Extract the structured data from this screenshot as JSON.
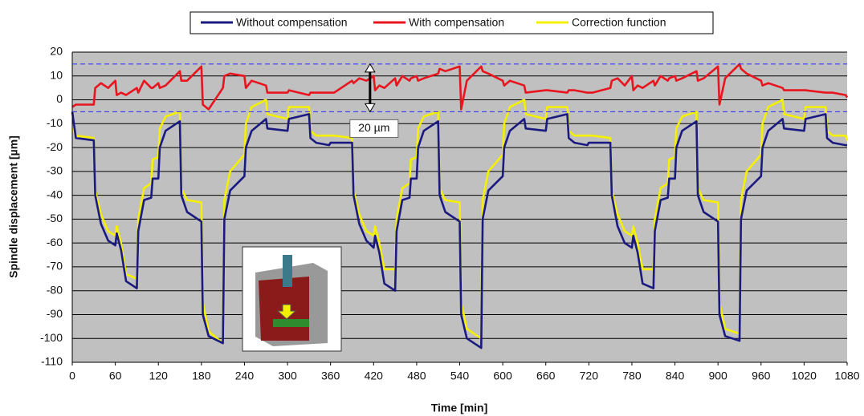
{
  "chart_data": {
    "type": "line",
    "xlabel": "Time [min]",
    "ylabel": "Spindle displacement [µm]",
    "xlim": [
      0,
      1080
    ],
    "ylim": [
      -110,
      20
    ],
    "xticks": [
      0,
      60,
      120,
      180,
      240,
      300,
      360,
      420,
      480,
      540,
      600,
      660,
      720,
      780,
      840,
      900,
      960,
      1020,
      1080
    ],
    "yticks": [
      -110,
      -100,
      -90,
      -80,
      -70,
      -60,
      -50,
      -40,
      -30,
      -20,
      -10,
      0,
      10,
      20
    ],
    "grid": true,
    "legend": "top",
    "annotations": [
      {
        "text": "20 µm",
        "x": 415,
        "y_from": -5,
        "y_to": 15
      }
    ],
    "x": [
      0,
      5,
      30,
      32,
      40,
      50,
      60,
      62,
      68,
      75,
      90,
      92,
      100,
      110,
      112,
      120,
      122,
      130,
      150,
      152,
      160,
      180,
      182,
      190,
      210,
      212,
      220,
      240,
      242,
      250,
      270,
      272,
      300,
      302,
      330,
      332,
      340,
      358,
      360,
      365,
      390,
      392,
      400,
      410,
      420,
      422,
      428,
      435,
      450,
      452,
      460,
      470,
      472,
      480,
      482,
      490,
      510,
      512,
      520,
      540,
      542,
      550,
      570,
      572,
      580,
      600,
      602,
      610,
      630,
      632,
      660,
      662,
      690,
      692,
      700,
      718,
      720,
      725,
      750,
      752,
      760,
      770,
      780,
      782,
      788,
      795,
      810,
      812,
      820,
      830,
      832,
      840,
      842,
      850,
      870,
      872,
      880,
      900,
      902,
      910,
      930,
      932,
      940,
      960,
      962,
      970,
      990,
      992,
      1020,
      1022,
      1050,
      1052,
      1060,
      1078,
      1080
    ],
    "series": [
      {
        "name": "Without compensation",
        "color": "#1a1a80",
        "values": [
          -5,
          -16,
          -17,
          -40,
          -52,
          -59,
          -61,
          -56,
          -63,
          -76,
          -79,
          -55,
          -42,
          -41,
          -33,
          -33,
          -20,
          -13,
          -9,
          -40,
          -47,
          -51,
          -90,
          -99,
          -102,
          -50,
          -38,
          -32,
          -20,
          -13,
          -8,
          -12,
          -13,
          -8,
          -6,
          -16,
          -18,
          -19,
          -18,
          -18,
          -18,
          -40,
          -52,
          -59,
          -62,
          -57,
          -64,
          -77,
          -80,
          -55,
          -42,
          -41,
          -33,
          -33,
          -20,
          -13,
          -9,
          -40,
          -47,
          -51,
          -90,
          -100,
          -104,
          -50,
          -38,
          -32,
          -20,
          -13,
          -8,
          -12,
          -13,
          -8,
          -6,
          -16,
          -18,
          -19,
          -18,
          -18,
          -18,
          -40,
          -53,
          -60,
          -62,
          -57,
          -64,
          -77,
          -79,
          -55,
          -42,
          -41,
          -33,
          -33,
          -20,
          -13,
          -9,
          -40,
          -47,
          -51,
          -90,
          -99,
          -101,
          -50,
          -38,
          -32,
          -20,
          -13,
          -8,
          -12,
          -13,
          -8,
          -6,
          -16,
          -18,
          -19,
          -19
        ]
      },
      {
        "name": "With compensation",
        "color": "#e8141e",
        "values": [
          -3,
          -2,
          -2,
          5,
          7,
          5,
          8,
          2,
          3,
          2,
          5,
          3,
          8,
          5,
          5,
          7,
          5,
          6,
          12,
          8,
          8,
          14,
          -2,
          -4,
          5,
          10,
          11,
          10,
          5,
          8,
          6,
          3,
          3,
          4,
          2,
          3,
          3,
          3,
          3,
          3,
          8,
          7,
          9,
          8,
          10,
          4,
          6,
          5,
          9,
          6,
          10,
          8,
          9,
          10,
          8,
          9,
          11,
          13,
          12,
          14,
          -4,
          8,
          14,
          12,
          11,
          8,
          6,
          8,
          6,
          3,
          4,
          4,
          3,
          4,
          4,
          3,
          3,
          3,
          5,
          8,
          9,
          6,
          10,
          4,
          6,
          5,
          8,
          6,
          10,
          8,
          9,
          10,
          8,
          9,
          12,
          8,
          9,
          14,
          -2,
          9,
          15,
          13,
          11,
          8,
          6,
          7,
          5,
          4,
          4,
          4,
          3,
          3,
          3,
          2,
          1
        ]
      },
      {
        "name": "Correction function",
        "color": "#f5f000",
        "values": [
          -12,
          -15,
          -16,
          -38,
          -48,
          -55,
          -57,
          -53,
          -60,
          -73,
          -75,
          -50,
          -37,
          -35,
          -25,
          -24,
          -12,
          -7,
          -5,
          -37,
          -42,
          -43,
          -85,
          -97,
          -102,
          -42,
          -30,
          -23,
          -10,
          -3,
          0,
          -6,
          -8,
          -3,
          -3,
          -13,
          -15,
          -15,
          -15,
          -15,
          -16,
          -38,
          -48,
          -55,
          -57,
          -53,
          -60,
          -71,
          -71,
          -50,
          -37,
          -35,
          -25,
          -24,
          -12,
          -7,
          -5,
          -37,
          -42,
          -43,
          -85,
          -96,
          -100,
          -42,
          -30,
          -23,
          -10,
          -3,
          0,
          -6,
          -8,
          -3,
          -3,
          -13,
          -15,
          -15,
          -15,
          -15,
          -16,
          -38,
          -48,
          -55,
          -57,
          -53,
          -60,
          -71,
          -71,
          -50,
          -37,
          -35,
          -25,
          -24,
          -12,
          -7,
          -5,
          -37,
          -42,
          -43,
          -85,
          -96,
          -98,
          -42,
          -30,
          -23,
          -10,
          -3,
          0,
          -6,
          -8,
          -3,
          -3,
          -13,
          -15,
          -15,
          -17
        ]
      }
    ]
  }
}
